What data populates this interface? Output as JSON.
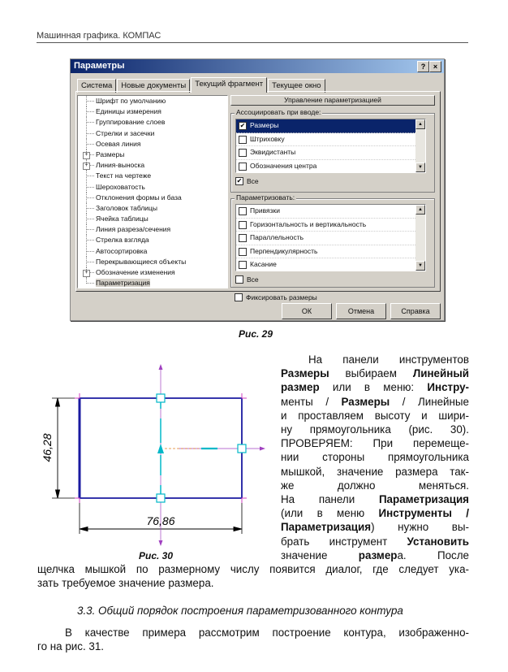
{
  "header": {
    "running_title": "Машинная графика. КОМПАС"
  },
  "dialog": {
    "title": "Параметры",
    "help_btn": "?",
    "close_btn": "×",
    "tabs": [
      "Система",
      "Новые документы",
      "Текущий фрагмент",
      "Текущее окно"
    ],
    "active_tab": 2,
    "tree": [
      {
        "label": "Шрифт по умолчанию",
        "expandable": false
      },
      {
        "label": "Единицы измерения",
        "expandable": false
      },
      {
        "label": "Группирование слоев",
        "expandable": false
      },
      {
        "label": "Стрелки и засечки",
        "expandable": false
      },
      {
        "label": "Осевая линия",
        "expandable": false
      },
      {
        "label": "Размеры",
        "expandable": true
      },
      {
        "label": "Линия-выноска",
        "expandable": true
      },
      {
        "label": "Текст на чертеже",
        "expandable": false
      },
      {
        "label": "Шероховатость",
        "expandable": false
      },
      {
        "label": "Отклонения формы и база",
        "expandable": false
      },
      {
        "label": "Заголовок таблицы",
        "expandable": false
      },
      {
        "label": "Ячейка таблицы",
        "expandable": false
      },
      {
        "label": "Линия разреза/сечения",
        "expandable": false
      },
      {
        "label": "Стрелка взгляда",
        "expandable": false
      },
      {
        "label": "Автосортировка",
        "expandable": false
      },
      {
        "label": "Перекрывающиеся объекты",
        "expandable": false
      },
      {
        "label": "Обозначение изменения",
        "expandable": true
      },
      {
        "label": "Параметризация",
        "expandable": false,
        "selected": true
      }
    ],
    "panel_title": "Управление параметризацией",
    "assoc_group": {
      "label": "Ассоциировать при вводе:",
      "items": [
        {
          "label": "Размеры",
          "checked": true,
          "highlighted": true
        },
        {
          "label": "Штриховку",
          "checked": false
        },
        {
          "label": "Эквидистанты",
          "checked": false
        },
        {
          "label": "Обозначения центра",
          "checked": false
        }
      ],
      "all_label": "Все",
      "all_checked": true
    },
    "param_group": {
      "label": "Параметризовать:",
      "items": [
        {
          "label": "Привязки",
          "checked": false
        },
        {
          "label": "Горизонтальность и вертикальность",
          "checked": false
        },
        {
          "label": "Параллельность",
          "checked": false
        },
        {
          "label": "Перпендикулярность",
          "checked": false
        },
        {
          "label": "Касание",
          "checked": false
        }
      ],
      "all_label": "Все",
      "all_checked": false
    },
    "fix_label": "Фиксировать размеры",
    "fix_checked": false,
    "buttons": {
      "ok": "ОК",
      "cancel": "Отмена",
      "help": "Справка"
    }
  },
  "fig29_caption": "Рис. 29",
  "fig30": {
    "caption": "Рис. 30",
    "dim_vertical": "46,28",
    "dim_horizontal": "76,86"
  },
  "body": {
    "p1_lines": [
      "На панели инструментов",
      "Размеры выбираем Линейный",
      "размер или в меню: Инстру-",
      "менты / Размеры / Линейные",
      "и проставляем высоту и шири-",
      "ну прямоугольника (рис. 30).",
      "ПРОВЕРЯЕМ: При перемеще-",
      "нии стороны прямоугольника",
      "мышкой, значение размера так-",
      "же должно меняться.",
      "На панели Параметризация",
      "(или в меню Инструменты /",
      "Параметризация) нужно вы-",
      "брать инструмент Установить",
      "значение размера. После"
    ],
    "p1_full_lines": [
      "щелчка мышкой по размерному числу появится диалог, где следует ука-",
      "зать требуемое значение размера."
    ],
    "section_title": "3.3. Общий порядок построения параметризованного контура",
    "p2_lines": [
      "В качестве примера рассмотрим построение контура, изображенно-",
      "го на рис. 31."
    ]
  }
}
